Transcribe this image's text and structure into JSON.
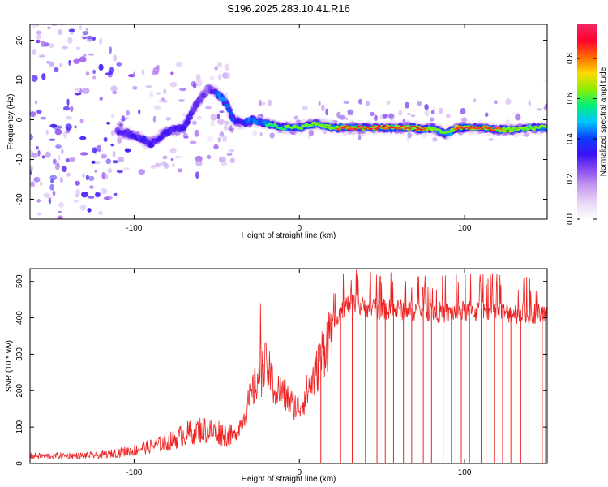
{
  "title": "S196.2025.283.10.41.R16",
  "colors": {
    "snr_line": "#ee2222",
    "axis": "#000000",
    "background": "#ffffff",
    "colormap": [
      "#ffffff",
      "#e9d8f5",
      "#c79df0",
      "#8d4ff0",
      "#3b10f5",
      "#0b3fff",
      "#00c6ff",
      "#00f07a",
      "#8cf000",
      "#ffd800",
      "#ff6a00",
      "#ff0030",
      "#f02860"
    ]
  },
  "chart_data": [
    {
      "type": "heatmap",
      "title": "S196.2025.283.10.41.R16",
      "xlabel": "Height of straight line (km)",
      "ylabel": "Frequency (Hz)",
      "xlim": [
        -163,
        150
      ],
      "ylim": [
        -25,
        24
      ],
      "xticks": [
        -100,
        0,
        100
      ],
      "yticks": [
        20,
        10,
        0,
        -10,
        -20
      ],
      "colorbar": {
        "label": "Normalized spectral amplitude",
        "range": [
          0.0,
          0.97
        ],
        "ticks": [
          0.0,
          0.2,
          0.4,
          0.6,
          0.8
        ]
      },
      "ridge": {
        "x": [
          -110,
          -100,
          -90,
          -80,
          -70,
          -62,
          -55,
          -48,
          -44,
          -40,
          -34,
          -28,
          -20,
          -10,
          0,
          10,
          20,
          30,
          40,
          50,
          60,
          70,
          75,
          80,
          85,
          88,
          92,
          95,
          100,
          110,
          120,
          130,
          140,
          150
        ],
        "y": [
          -3,
          -4,
          -6,
          -3,
          -2,
          4,
          8,
          6,
          4,
          0,
          -1,
          0,
          -1,
          -2,
          -2,
          -1,
          -2,
          -2,
          -2,
          -2,
          -2,
          -2,
          -2.5,
          -2,
          -3,
          -3.5,
          -3,
          -2,
          -2,
          -2,
          -2.5,
          -2.5,
          -2,
          -2
        ],
        "peak_amplitude": [
          0.3,
          0.35,
          0.4,
          0.35,
          0.35,
          0.3,
          0.25,
          0.5,
          0.45,
          0.4,
          0.35,
          0.55,
          0.6,
          0.6,
          0.75,
          0.7,
          0.8,
          0.95,
          0.95,
          0.9,
          0.95,
          0.9,
          0.85,
          0.8,
          0.7,
          0.7,
          0.8,
          0.85,
          0.9,
          0.95,
          0.85,
          0.75,
          0.7,
          0.65
        ]
      }
    },
    {
      "type": "line",
      "xlabel": "Height of straight line (km)",
      "ylabel": "SNR (10 * v/v)",
      "xlim": [
        -163,
        150
      ],
      "ylim": [
        0,
        535
      ],
      "xticks": [
        -100,
        0,
        100
      ],
      "yticks": [
        0,
        100,
        200,
        300,
        400,
        500
      ],
      "series": [
        {
          "name": "SNR",
          "x": [
            -163,
            -140,
            -120,
            -100,
            -80,
            -70,
            -60,
            -50,
            -40,
            -35,
            -30,
            -25,
            -20,
            -15,
            -10,
            -5,
            0,
            5,
            10,
            15,
            18,
            20,
            25,
            30,
            40,
            50,
            60,
            70,
            80,
            90,
            100,
            110,
            120,
            130,
            140,
            150
          ],
          "y": [
            20,
            20,
            22,
            35,
            55,
            75,
            90,
            85,
            70,
            110,
            170,
            230,
            260,
            200,
            190,
            160,
            150,
            195,
            240,
            310,
            340,
            380,
            420,
            435,
            425,
            420,
            420,
            418,
            415,
            410,
            415,
            415,
            412,
            410,
            410,
            410
          ]
        }
      ],
      "dropouts_x": [
        13,
        25,
        32,
        40,
        47,
        52,
        57,
        63,
        68,
        75,
        80,
        87,
        92,
        98,
        103,
        110,
        113,
        118,
        123,
        128,
        134,
        139,
        147,
        149
      ]
    }
  ]
}
